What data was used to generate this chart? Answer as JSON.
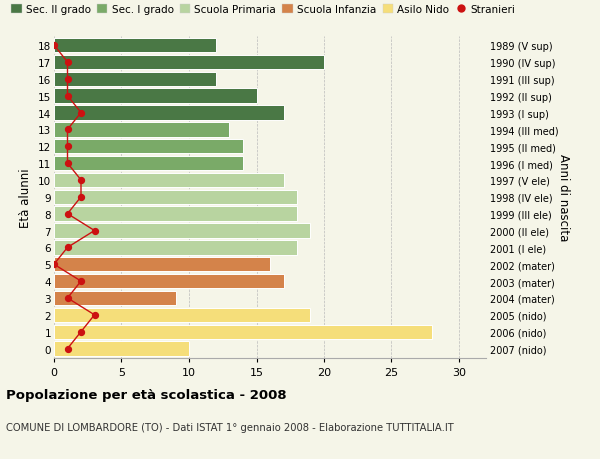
{
  "ages": [
    18,
    17,
    16,
    15,
    14,
    13,
    12,
    11,
    10,
    9,
    8,
    7,
    6,
    5,
    4,
    3,
    2,
    1,
    0
  ],
  "right_labels": [
    "1989 (V sup)",
    "1990 (IV sup)",
    "1991 (III sup)",
    "1992 (II sup)",
    "1993 (I sup)",
    "1994 (III med)",
    "1995 (II med)",
    "1996 (I med)",
    "1997 (V ele)",
    "1998 (IV ele)",
    "1999 (III ele)",
    "2000 (II ele)",
    "2001 (I ele)",
    "2002 (mater)",
    "2003 (mater)",
    "2004 (mater)",
    "2005 (nido)",
    "2006 (nido)",
    "2007 (nido)"
  ],
  "bar_values": [
    12,
    20,
    12,
    15,
    17,
    13,
    14,
    14,
    17,
    18,
    18,
    19,
    18,
    16,
    17,
    9,
    19,
    28,
    10
  ],
  "bar_colors": [
    "#4a7845",
    "#4a7845",
    "#4a7845",
    "#4a7845",
    "#4a7845",
    "#7aaa68",
    "#7aaa68",
    "#7aaa68",
    "#b8d4a0",
    "#b8d4a0",
    "#b8d4a0",
    "#b8d4a0",
    "#b8d4a0",
    "#d4834a",
    "#d4834a",
    "#d4834a",
    "#f5de7a",
    "#f5de7a",
    "#f5de7a"
  ],
  "stranieri_values": [
    0,
    1,
    1,
    1,
    2,
    1,
    1,
    1,
    2,
    2,
    1,
    3,
    1,
    0,
    2,
    1,
    3,
    2,
    1
  ],
  "legend_labels": [
    "Sec. II grado",
    "Sec. I grado",
    "Scuola Primaria",
    "Scuola Infanzia",
    "Asilo Nido",
    "Stranieri"
  ],
  "legend_colors": [
    "#4a7845",
    "#7aaa68",
    "#b8d4a0",
    "#d4834a",
    "#f5de7a",
    "#cc1111"
  ],
  "ylabel": "Età alunni",
  "right_ylabel": "Anni di nascita",
  "title": "Popolazione per età scolastica - 2008",
  "subtitle": "COMUNE DI LOMBARDORE (TO) - Dati ISTAT 1° gennaio 2008 - Elaborazione TUTTITALIA.IT",
  "xlim": [
    0,
    32
  ],
  "background_color": "#f5f5e8"
}
